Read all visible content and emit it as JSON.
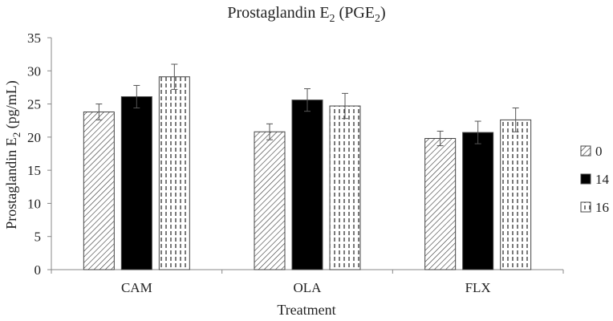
{
  "chart_data": {
    "type": "bar",
    "title": {
      "main": "Prostaglandin E",
      "sub": "2",
      "mid": " (PGE",
      "sub2": "2",
      "end": ")"
    },
    "xlabel": "Treatment",
    "ylabel": {
      "main": "Prostaglandin E",
      "sub": "2",
      "end": " (pg/mL)"
    },
    "ylim": [
      0,
      35
    ],
    "yticks": [
      "0",
      "5",
      "10",
      "15",
      "20",
      "25",
      "30",
      "35"
    ],
    "categories": [
      "CAM",
      "OLA",
      "FLX"
    ],
    "series": [
      {
        "name": "0",
        "pattern": "diagonal",
        "values": [
          23.8,
          20.8,
          19.8
        ],
        "errors": [
          1.2,
          1.2,
          1.1
        ]
      },
      {
        "name": "14",
        "pattern": "solid",
        "values": [
          26.1,
          25.6,
          20.7
        ],
        "errors": [
          1.7,
          1.7,
          1.7
        ]
      },
      {
        "name": "16",
        "pattern": "dashed",
        "values": [
          29.1,
          24.7,
          22.6
        ],
        "errors": [
          1.9,
          1.9,
          1.8
        ]
      }
    ],
    "legend_position": "right"
  }
}
